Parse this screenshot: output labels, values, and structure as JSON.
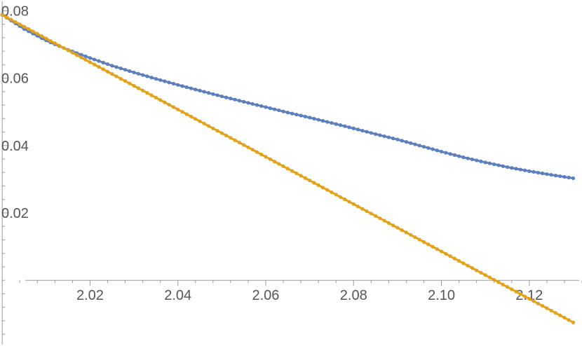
{
  "chart_data": {
    "type": "scatter",
    "title": "",
    "xlabel": "",
    "ylabel": "",
    "xlim": [
      1.9995,
      2.132
    ],
    "ylim": [
      -0.0195,
      0.0832
    ],
    "grid": false,
    "x_major_ticks": [
      2.02,
      2.04,
      2.06,
      2.08,
      2.1,
      2.12
    ],
    "x_tick_labels": [
      "2.02",
      "2.04",
      "2.06",
      "2.08",
      "2.10",
      "2.12"
    ],
    "y_major_ticks": [
      0.02,
      0.04,
      0.06,
      0.08
    ],
    "y_tick_labels": [
      "0.02",
      "0.04",
      "0.06",
      "0.08"
    ],
    "series": [
      {
        "color": "#5b7fbf",
        "points": [
          [
            2.0,
            0.0788
          ],
          [
            2.005,
            0.0746
          ],
          [
            2.01,
            0.0712
          ],
          [
            2.015,
            0.0684
          ],
          [
            2.02,
            0.066
          ],
          [
            2.025,
            0.0637
          ],
          [
            2.03,
            0.0617
          ],
          [
            2.035,
            0.0598
          ],
          [
            2.04,
            0.058
          ],
          [
            2.045,
            0.0563
          ],
          [
            2.05,
            0.0546
          ],
          [
            2.055,
            0.053
          ],
          [
            2.06,
            0.0514
          ],
          [
            2.065,
            0.0498
          ],
          [
            2.07,
            0.0483
          ],
          [
            2.075,
            0.0467
          ],
          [
            2.08,
            0.0451
          ],
          [
            2.085,
            0.0434
          ],
          [
            2.09,
            0.0418
          ],
          [
            2.095,
            0.04
          ],
          [
            2.1,
            0.0382
          ],
          [
            2.105,
            0.0365
          ],
          [
            2.11,
            0.035
          ],
          [
            2.115,
            0.0336
          ],
          [
            2.12,
            0.0324
          ],
          [
            2.125,
            0.0313
          ],
          [
            2.13,
            0.0303
          ]
        ]
      },
      {
        "color": "#e3a21a",
        "points": [
          [
            2.0,
            0.0788
          ],
          [
            2.13,
            -0.0125
          ]
        ]
      }
    ]
  }
}
